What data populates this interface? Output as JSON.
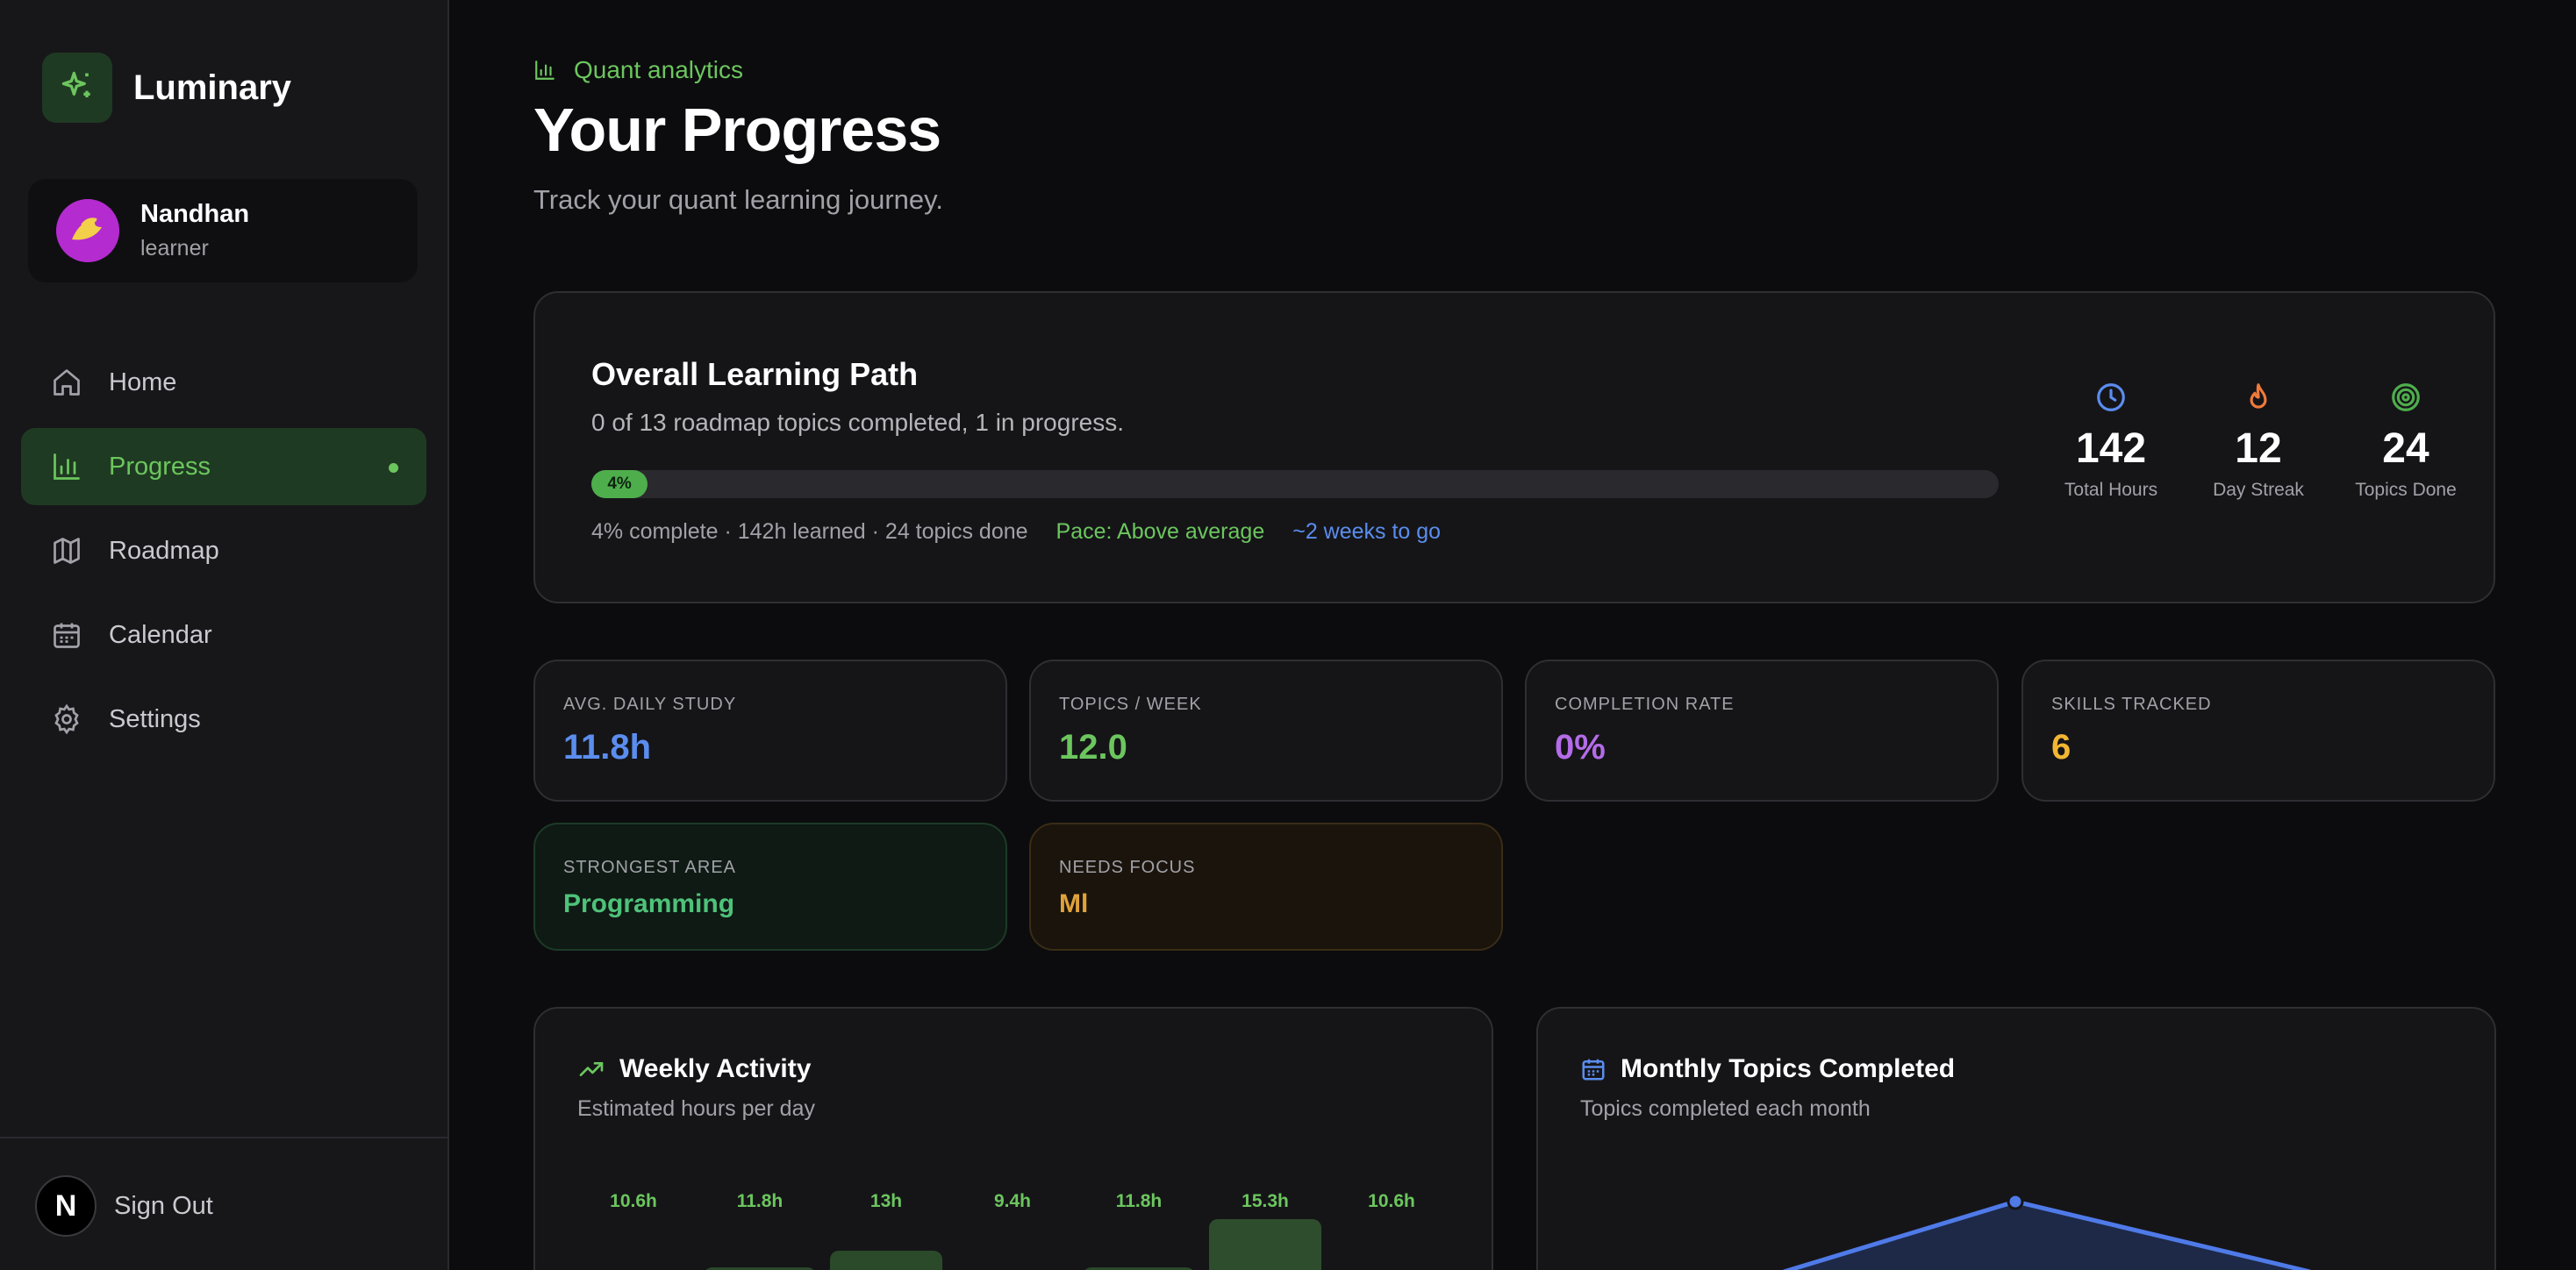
{
  "app": {
    "name": "Luminary"
  },
  "user": {
    "name": "Nandhan",
    "role": "learner"
  },
  "nav": {
    "items": [
      {
        "label": "Home",
        "icon": "home-icon",
        "active": false
      },
      {
        "label": "Progress",
        "icon": "bar-chart-icon",
        "active": true
      },
      {
        "label": "Roadmap",
        "icon": "map-icon",
        "active": false
      },
      {
        "label": "Calendar",
        "icon": "calendar-icon",
        "active": false
      },
      {
        "label": "Settings",
        "icon": "gear-icon",
        "active": false
      }
    ]
  },
  "signout": {
    "label": "Sign Out",
    "logo_letter": "N"
  },
  "header": {
    "eyebrow": "Quant analytics",
    "title": "Your Progress",
    "subtitle": "Track your quant learning journey."
  },
  "path": {
    "title": "Overall Learning Path",
    "subtitle": "0 of 13 roadmap topics completed, 1 in progress.",
    "progress_percent": 4,
    "progress_label": "4%",
    "summary": "4% complete · 142h learned · 24 topics done",
    "pace": "Pace: Above average",
    "eta": "~2 weeks to go",
    "stats": [
      {
        "value": "142",
        "label": "Total Hours",
        "icon": "clock-icon",
        "color": "#5b8dee"
      },
      {
        "value": "12",
        "label": "Day Streak",
        "icon": "flame-icon",
        "color": "#f07a3a"
      },
      {
        "value": "24",
        "label": "Topics Done",
        "icon": "target-icon",
        "color": "#4eae4c"
      }
    ]
  },
  "kpis": [
    {
      "label": "Avg. Daily Study",
      "value": "11.8h",
      "color": "#5b8dee"
    },
    {
      "label": "Topics / Week",
      "value": "12.0",
      "color": "#6cc65e"
    },
    {
      "label": "Completion Rate",
      "value": "0%",
      "color": "#b46ce8"
    },
    {
      "label": "Skills Tracked",
      "value": "6",
      "color": "#f2b632"
    }
  ],
  "focus": [
    {
      "label": "Strongest Area",
      "value": "Programming",
      "color": "#4ec27a"
    },
    {
      "label": "Needs Focus",
      "value": "Ml",
      "color": "#e0a23a"
    }
  ],
  "weekly": {
    "title": "Weekly Activity",
    "subtitle": "Estimated hours per day",
    "labels": [
      "10.6h",
      "11.8h",
      "13h",
      "9.4h",
      "11.8h",
      "15.3h",
      "10.6h"
    ],
    "values": [
      10.6,
      11.8,
      13,
      9.4,
      11.8,
      15.3,
      10.6
    ]
  },
  "monthly": {
    "title": "Monthly Topics Completed",
    "subtitle": "Topics completed each month"
  }
}
